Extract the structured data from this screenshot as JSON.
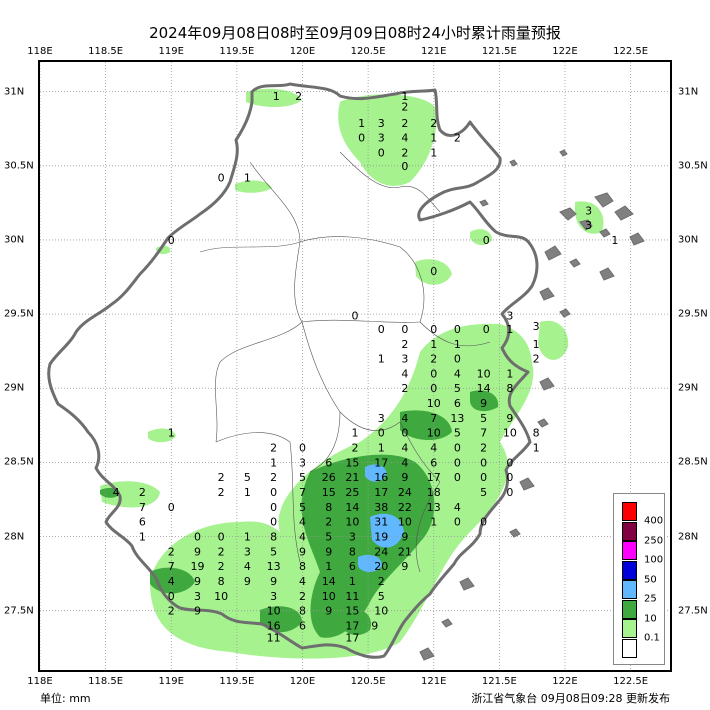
{
  "title": "2024年09月08日08时至09月09日08时24小时累计雨量预报",
  "footer": {
    "unit_label": "单位:",
    "unit_value": "mm",
    "issuer": "浙江省气象台 09月08日09:28 更新发布"
  },
  "axes": {
    "lon_ticks": [
      "118E",
      "118.5E",
      "119E",
      "119.5E",
      "120E",
      "120.5E",
      "121E",
      "121.5E",
      "122E",
      "122.5E"
    ],
    "lon_values": [
      118,
      118.5,
      119,
      119.5,
      120,
      120.5,
      121,
      121.5,
      122,
      122.5
    ],
    "lat_ticks": [
      "31N",
      "30.5N",
      "30N",
      "29.5N",
      "29N",
      "28.5N",
      "28N",
      "27.5N"
    ],
    "lat_values": [
      31,
      30.5,
      30,
      29.5,
      29,
      28.5,
      28,
      27.5
    ],
    "lon_range": [
      118,
      122.8
    ],
    "lat_range": [
      27.1,
      31.2
    ],
    "grid": "dotted"
  },
  "legend": {
    "items": [
      {
        "label": "400",
        "color": "#ff0000"
      },
      {
        "label": "250",
        "color": "#800040"
      },
      {
        "label": "100",
        "color": "#ff00ff"
      },
      {
        "label": "50",
        "color": "#0000d8"
      },
      {
        "label": "25",
        "color": "#61b8ff"
      },
      {
        "label": "10",
        "color": "#3fa83f"
      },
      {
        "label": "0.1",
        "color": "#a6f28f"
      },
      {
        "label": "",
        "color": "#ffffff"
      }
    ]
  },
  "colors": {
    "light_green": "#a6f28f",
    "green": "#3fa83f",
    "blue": "#61b8ff",
    "province_border": "#6e6e6e",
    "city_border": "#555555",
    "grid": "#999999"
  },
  "station_values": [
    {
      "lon": 119.8,
      "lat": 30.97,
      "v": "1"
    },
    {
      "lon": 119.97,
      "lat": 30.97,
      "v": "2"
    },
    {
      "lon": 120.78,
      "lat": 30.97,
      "v": "1"
    },
    {
      "lon": 120.78,
      "lat": 30.9,
      "v": "2"
    },
    {
      "lon": 120.45,
      "lat": 30.79,
      "v": "1"
    },
    {
      "lon": 120.6,
      "lat": 30.79,
      "v": "3"
    },
    {
      "lon": 120.78,
      "lat": 30.79,
      "v": "2"
    },
    {
      "lon": 121.0,
      "lat": 30.79,
      "v": "2"
    },
    {
      "lon": 120.45,
      "lat": 30.69,
      "v": "0"
    },
    {
      "lon": 120.6,
      "lat": 30.69,
      "v": "3"
    },
    {
      "lon": 120.78,
      "lat": 30.69,
      "v": "4"
    },
    {
      "lon": 121.0,
      "lat": 30.69,
      "v": "1"
    },
    {
      "lon": 121.18,
      "lat": 30.69,
      "v": "2"
    },
    {
      "lon": 120.6,
      "lat": 30.59,
      "v": "0"
    },
    {
      "lon": 120.78,
      "lat": 30.59,
      "v": "2"
    },
    {
      "lon": 121.0,
      "lat": 30.59,
      "v": "1"
    },
    {
      "lon": 120.78,
      "lat": 30.5,
      "v": "0"
    },
    {
      "lon": 119.38,
      "lat": 30.42,
      "v": "0"
    },
    {
      "lon": 119.58,
      "lat": 30.42,
      "v": "1"
    },
    {
      "lon": 119.0,
      "lat": 30.0,
      "v": "0"
    },
    {
      "lon": 121.4,
      "lat": 30.0,
      "v": "0"
    },
    {
      "lon": 121.0,
      "lat": 29.79,
      "v": "0"
    },
    {
      "lon": 122.18,
      "lat": 30.2,
      "v": "3"
    },
    {
      "lon": 122.18,
      "lat": 30.1,
      "v": "3"
    },
    {
      "lon": 122.38,
      "lat": 30.0,
      "v": "1"
    },
    {
      "lon": 120.4,
      "lat": 29.49,
      "v": "0"
    },
    {
      "lon": 120.6,
      "lat": 29.4,
      "v": "0"
    },
    {
      "lon": 120.78,
      "lat": 29.4,
      "v": "0"
    },
    {
      "lon": 121.0,
      "lat": 29.4,
      "v": "0"
    },
    {
      "lon": 121.18,
      "lat": 29.4,
      "v": "0"
    },
    {
      "lon": 121.4,
      "lat": 29.4,
      "v": "0"
    },
    {
      "lon": 121.58,
      "lat": 29.4,
      "v": "1"
    },
    {
      "lon": 121.58,
      "lat": 29.49,
      "v": "3"
    },
    {
      "lon": 121.78,
      "lat": 29.42,
      "v": "3"
    },
    {
      "lon": 120.78,
      "lat": 29.3,
      "v": "2"
    },
    {
      "lon": 121.0,
      "lat": 29.3,
      "v": "1"
    },
    {
      "lon": 121.18,
      "lat": 29.3,
      "v": "1"
    },
    {
      "lon": 121.78,
      "lat": 29.3,
      "v": "1"
    },
    {
      "lon": 120.6,
      "lat": 29.2,
      "v": "1"
    },
    {
      "lon": 120.78,
      "lat": 29.2,
      "v": "3"
    },
    {
      "lon": 121.0,
      "lat": 29.2,
      "v": "2"
    },
    {
      "lon": 121.18,
      "lat": 29.2,
      "v": "0"
    },
    {
      "lon": 121.78,
      "lat": 29.2,
      "v": "2"
    },
    {
      "lon": 120.78,
      "lat": 29.1,
      "v": "4"
    },
    {
      "lon": 121.0,
      "lat": 29.1,
      "v": "0"
    },
    {
      "lon": 121.18,
      "lat": 29.1,
      "v": "4"
    },
    {
      "lon": 121.38,
      "lat": 29.1,
      "v": "10"
    },
    {
      "lon": 121.58,
      "lat": 29.1,
      "v": "1"
    },
    {
      "lon": 120.78,
      "lat": 29.0,
      "v": "2"
    },
    {
      "lon": 121.0,
      "lat": 29.0,
      "v": "0"
    },
    {
      "lon": 121.18,
      "lat": 29.0,
      "v": "5"
    },
    {
      "lon": 121.38,
      "lat": 29.0,
      "v": "14"
    },
    {
      "lon": 121.58,
      "lat": 29.0,
      "v": "8"
    },
    {
      "lon": 121.0,
      "lat": 28.9,
      "v": "10"
    },
    {
      "lon": 121.18,
      "lat": 28.9,
      "v": "6"
    },
    {
      "lon": 121.38,
      "lat": 28.9,
      "v": "9"
    },
    {
      "lon": 120.6,
      "lat": 28.8,
      "v": "3"
    },
    {
      "lon": 120.78,
      "lat": 28.8,
      "v": "4"
    },
    {
      "lon": 121.0,
      "lat": 28.8,
      "v": "7"
    },
    {
      "lon": 121.18,
      "lat": 28.8,
      "v": "13"
    },
    {
      "lon": 121.38,
      "lat": 28.8,
      "v": "5"
    },
    {
      "lon": 121.58,
      "lat": 28.8,
      "v": "9"
    },
    {
      "lon": 119.0,
      "lat": 28.7,
      "v": "1"
    },
    {
      "lon": 120.4,
      "lat": 28.7,
      "v": "1"
    },
    {
      "lon": 120.6,
      "lat": 28.7,
      "v": "0"
    },
    {
      "lon": 120.78,
      "lat": 28.7,
      "v": "0"
    },
    {
      "lon": 121.0,
      "lat": 28.7,
      "v": "10"
    },
    {
      "lon": 121.18,
      "lat": 28.7,
      "v": "5"
    },
    {
      "lon": 121.38,
      "lat": 28.7,
      "v": "7"
    },
    {
      "lon": 121.58,
      "lat": 28.7,
      "v": "10"
    },
    {
      "lon": 121.78,
      "lat": 28.7,
      "v": "8"
    },
    {
      "lon": 119.78,
      "lat": 28.6,
      "v": "2"
    },
    {
      "lon": 120.0,
      "lat": 28.6,
      "v": "0"
    },
    {
      "lon": 120.4,
      "lat": 28.6,
      "v": "2"
    },
    {
      "lon": 120.6,
      "lat": 28.6,
      "v": "1"
    },
    {
      "lon": 120.78,
      "lat": 28.6,
      "v": "4"
    },
    {
      "lon": 121.0,
      "lat": 28.6,
      "v": "4"
    },
    {
      "lon": 121.18,
      "lat": 28.6,
      "v": "0"
    },
    {
      "lon": 121.38,
      "lat": 28.6,
      "v": "2"
    },
    {
      "lon": 121.78,
      "lat": 28.6,
      "v": "1"
    },
    {
      "lon": 119.78,
      "lat": 28.5,
      "v": "1"
    },
    {
      "lon": 120.0,
      "lat": 28.5,
      "v": "3"
    },
    {
      "lon": 120.2,
      "lat": 28.5,
      "v": "6"
    },
    {
      "lon": 120.38,
      "lat": 28.5,
      "v": "15"
    },
    {
      "lon": 120.6,
      "lat": 28.5,
      "v": "17"
    },
    {
      "lon": 120.78,
      "lat": 28.5,
      "v": "4"
    },
    {
      "lon": 121.0,
      "lat": 28.5,
      "v": "6"
    },
    {
      "lon": 121.18,
      "lat": 28.5,
      "v": "0"
    },
    {
      "lon": 121.38,
      "lat": 28.5,
      "v": "0"
    },
    {
      "lon": 121.58,
      "lat": 28.5,
      "v": "0"
    },
    {
      "lon": 119.38,
      "lat": 28.4,
      "v": "2"
    },
    {
      "lon": 119.58,
      "lat": 28.4,
      "v": "5"
    },
    {
      "lon": 119.78,
      "lat": 28.4,
      "v": "2"
    },
    {
      "lon": 120.0,
      "lat": 28.4,
      "v": "5"
    },
    {
      "lon": 120.2,
      "lat": 28.4,
      "v": "26"
    },
    {
      "lon": 120.38,
      "lat": 28.4,
      "v": "21"
    },
    {
      "lon": 120.6,
      "lat": 28.4,
      "v": "16"
    },
    {
      "lon": 120.78,
      "lat": 28.4,
      "v": "9"
    },
    {
      "lon": 121.0,
      "lat": 28.4,
      "v": "17"
    },
    {
      "lon": 121.18,
      "lat": 28.4,
      "v": "0"
    },
    {
      "lon": 121.38,
      "lat": 28.4,
      "v": "0"
    },
    {
      "lon": 121.58,
      "lat": 28.4,
      "v": "0"
    },
    {
      "lon": 118.58,
      "lat": 28.3,
      "v": "4"
    },
    {
      "lon": 118.78,
      "lat": 28.3,
      "v": "2"
    },
    {
      "lon": 119.38,
      "lat": 28.3,
      "v": "2"
    },
    {
      "lon": 119.58,
      "lat": 28.3,
      "v": "1"
    },
    {
      "lon": 119.78,
      "lat": 28.3,
      "v": "0"
    },
    {
      "lon": 120.0,
      "lat": 28.3,
      "v": "7"
    },
    {
      "lon": 120.2,
      "lat": 28.3,
      "v": "15"
    },
    {
      "lon": 120.38,
      "lat": 28.3,
      "v": "25"
    },
    {
      "lon": 120.6,
      "lat": 28.3,
      "v": "17"
    },
    {
      "lon": 120.78,
      "lat": 28.3,
      "v": "24"
    },
    {
      "lon": 121.0,
      "lat": 28.3,
      "v": "18"
    },
    {
      "lon": 121.38,
      "lat": 28.3,
      "v": "5"
    },
    {
      "lon": 121.58,
      "lat": 28.3,
      "v": "0"
    },
    {
      "lon": 118.78,
      "lat": 28.2,
      "v": "7"
    },
    {
      "lon": 119.0,
      "lat": 28.2,
      "v": "0"
    },
    {
      "lon": 119.78,
      "lat": 28.2,
      "v": "0"
    },
    {
      "lon": 120.0,
      "lat": 28.2,
      "v": "5"
    },
    {
      "lon": 120.2,
      "lat": 28.2,
      "v": "8"
    },
    {
      "lon": 120.38,
      "lat": 28.2,
      "v": "14"
    },
    {
      "lon": 120.6,
      "lat": 28.2,
      "v": "38"
    },
    {
      "lon": 120.78,
      "lat": 28.2,
      "v": "22"
    },
    {
      "lon": 121.0,
      "lat": 28.2,
      "v": "13"
    },
    {
      "lon": 121.18,
      "lat": 28.2,
      "v": "4"
    },
    {
      "lon": 118.78,
      "lat": 28.1,
      "v": "6"
    },
    {
      "lon": 119.78,
      "lat": 28.1,
      "v": "0"
    },
    {
      "lon": 120.0,
      "lat": 28.1,
      "v": "4"
    },
    {
      "lon": 120.2,
      "lat": 28.1,
      "v": "2"
    },
    {
      "lon": 120.38,
      "lat": 28.1,
      "v": "10"
    },
    {
      "lon": 120.6,
      "lat": 28.1,
      "v": "31"
    },
    {
      "lon": 120.78,
      "lat": 28.1,
      "v": "10"
    },
    {
      "lon": 121.0,
      "lat": 28.1,
      "v": "1"
    },
    {
      "lon": 121.18,
      "lat": 28.1,
      "v": "0"
    },
    {
      "lon": 121.38,
      "lat": 28.1,
      "v": "0"
    },
    {
      "lon": 118.78,
      "lat": 28.0,
      "v": "1"
    },
    {
      "lon": 119.2,
      "lat": 28.0,
      "v": "0"
    },
    {
      "lon": 119.38,
      "lat": 28.0,
      "v": "0"
    },
    {
      "lon": 119.58,
      "lat": 28.0,
      "v": "1"
    },
    {
      "lon": 119.78,
      "lat": 28.0,
      "v": "8"
    },
    {
      "lon": 120.0,
      "lat": 28.0,
      "v": "4"
    },
    {
      "lon": 120.2,
      "lat": 28.0,
      "v": "5"
    },
    {
      "lon": 120.38,
      "lat": 28.0,
      "v": "3"
    },
    {
      "lon": 120.6,
      "lat": 28.0,
      "v": "19"
    },
    {
      "lon": 120.78,
      "lat": 28.0,
      "v": "9"
    },
    {
      "lon": 119.0,
      "lat": 27.9,
      "v": "2"
    },
    {
      "lon": 119.2,
      "lat": 27.9,
      "v": "9"
    },
    {
      "lon": 119.38,
      "lat": 27.9,
      "v": "2"
    },
    {
      "lon": 119.58,
      "lat": 27.9,
      "v": "3"
    },
    {
      "lon": 119.78,
      "lat": 27.9,
      "v": "5"
    },
    {
      "lon": 120.0,
      "lat": 27.9,
      "v": "9"
    },
    {
      "lon": 120.2,
      "lat": 27.9,
      "v": "9"
    },
    {
      "lon": 120.38,
      "lat": 27.9,
      "v": "8"
    },
    {
      "lon": 120.6,
      "lat": 27.9,
      "v": "24"
    },
    {
      "lon": 120.78,
      "lat": 27.9,
      "v": "21"
    },
    {
      "lon": 119.0,
      "lat": 27.8,
      "v": "7"
    },
    {
      "lon": 119.2,
      "lat": 27.8,
      "v": "19"
    },
    {
      "lon": 119.38,
      "lat": 27.8,
      "v": "2"
    },
    {
      "lon": 119.58,
      "lat": 27.8,
      "v": "4"
    },
    {
      "lon": 119.78,
      "lat": 27.8,
      "v": "13"
    },
    {
      "lon": 120.0,
      "lat": 27.8,
      "v": "8"
    },
    {
      "lon": 120.2,
      "lat": 27.8,
      "v": "1"
    },
    {
      "lon": 120.38,
      "lat": 27.8,
      "v": "6"
    },
    {
      "lon": 120.6,
      "lat": 27.8,
      "v": "20"
    },
    {
      "lon": 120.78,
      "lat": 27.8,
      "v": "9"
    },
    {
      "lon": 119.0,
      "lat": 27.7,
      "v": "4"
    },
    {
      "lon": 119.2,
      "lat": 27.7,
      "v": "9"
    },
    {
      "lon": 119.38,
      "lat": 27.7,
      "v": "8"
    },
    {
      "lon": 119.58,
      "lat": 27.7,
      "v": "9"
    },
    {
      "lon": 119.78,
      "lat": 27.7,
      "v": "9"
    },
    {
      "lon": 120.0,
      "lat": 27.7,
      "v": "4"
    },
    {
      "lon": 120.2,
      "lat": 27.7,
      "v": "14"
    },
    {
      "lon": 120.38,
      "lat": 27.7,
      "v": "1"
    },
    {
      "lon": 120.6,
      "lat": 27.7,
      "v": "2"
    },
    {
      "lon": 119.0,
      "lat": 27.6,
      "v": "0"
    },
    {
      "lon": 119.2,
      "lat": 27.6,
      "v": "3"
    },
    {
      "lon": 119.38,
      "lat": 27.6,
      "v": "10"
    },
    {
      "lon": 119.78,
      "lat": 27.6,
      "v": "3"
    },
    {
      "lon": 120.0,
      "lat": 27.6,
      "v": "2"
    },
    {
      "lon": 120.2,
      "lat": 27.6,
      "v": "10"
    },
    {
      "lon": 120.38,
      "lat": 27.6,
      "v": "11"
    },
    {
      "lon": 120.6,
      "lat": 27.6,
      "v": "5"
    },
    {
      "lon": 119.0,
      "lat": 27.5,
      "v": "2"
    },
    {
      "lon": 119.2,
      "lat": 27.5,
      "v": "9"
    },
    {
      "lon": 119.78,
      "lat": 27.5,
      "v": "10"
    },
    {
      "lon": 120.0,
      "lat": 27.5,
      "v": "8"
    },
    {
      "lon": 120.2,
      "lat": 27.5,
      "v": "9"
    },
    {
      "lon": 120.38,
      "lat": 27.5,
      "v": "15"
    },
    {
      "lon": 120.6,
      "lat": 27.5,
      "v": "10"
    },
    {
      "lon": 119.78,
      "lat": 27.4,
      "v": "16"
    },
    {
      "lon": 120.0,
      "lat": 27.4,
      "v": "6"
    },
    {
      "lon": 120.38,
      "lat": 27.4,
      "v": "17"
    },
    {
      "lon": 120.55,
      "lat": 27.4,
      "v": "9"
    },
    {
      "lon": 119.78,
      "lat": 27.32,
      "v": "11"
    },
    {
      "lon": 120.38,
      "lat": 27.32,
      "v": "17"
    }
  ]
}
